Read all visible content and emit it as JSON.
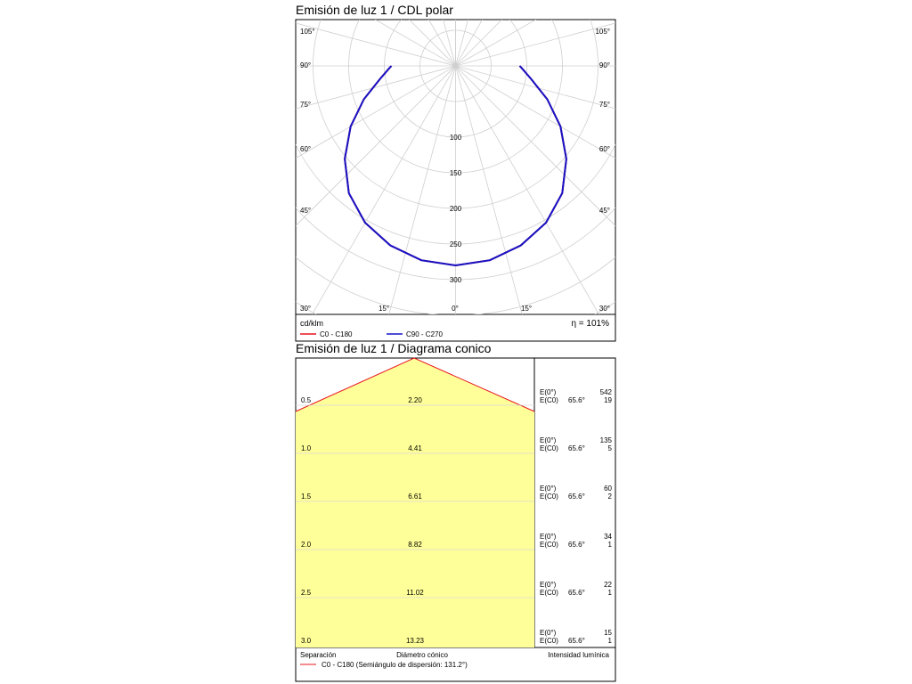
{
  "chart_data": [
    {
      "type": "polar",
      "title": "Emisión de luz 1 / CDL polar",
      "unit_label": "cd/klm",
      "efficiency": "η = 101%",
      "radial_ticks": [
        100,
        150,
        200,
        250,
        300
      ],
      "angle_labels_left": [
        "105°",
        "90°",
        "75°",
        "60°",
        "45°",
        "30°"
      ],
      "angle_labels_right": [
        "105°",
        "90°",
        "75°",
        "60°",
        "45°",
        "30°"
      ],
      "angle_labels_bottom": [
        "15°",
        "0°",
        "15°"
      ],
      "series": [
        {
          "name": "C0 - C180",
          "color": "#e8141e",
          "gamma": [
            0,
            10,
            20,
            30,
            40,
            50,
            60,
            70,
            80,
            88,
            90
          ],
          "cd_klm": [
            280,
            277,
            268,
            254,
            233,
            203,
            170,
            137,
            108,
            93,
            90
          ]
        },
        {
          "name": "C90 - C270",
          "color": "#1414c8",
          "gamma": [
            0,
            10,
            20,
            30,
            40,
            50,
            60,
            70,
            80,
            88,
            90
          ],
          "cd_klm": [
            280,
            277,
            268,
            254,
            233,
            203,
            170,
            137,
            108,
            93,
            90
          ]
        }
      ]
    },
    {
      "type": "table",
      "title": "Emisión de luz 1 / Diagrama conico",
      "headers": {
        "separation": "Separación",
        "diameter": "Diámetro cónico",
        "intensity": "Intensidad lumínica"
      },
      "legend": "C0 - C180 (Semiángulo de dispersión: 131.2°)",
      "half_angle": 131.2,
      "label_e0": "E(0°)",
      "label_ec0": "E(C0)",
      "rows": [
        {
          "separation": "0.5",
          "diameter": "2.20",
          "angle": "65.6°",
          "e0": "542",
          "ec0": "19"
        },
        {
          "separation": "1.0",
          "diameter": "4.41",
          "angle": "65.6°",
          "e0": "135",
          "ec0": "5"
        },
        {
          "separation": "1.5",
          "diameter": "6.61",
          "angle": "65.6°",
          "e0": "60",
          "ec0": "2"
        },
        {
          "separation": "2.0",
          "diameter": "8.82",
          "angle": "65.6°",
          "e0": "34",
          "ec0": "1"
        },
        {
          "separation": "2.5",
          "diameter": "11.02",
          "angle": "65.6°",
          "e0": "22",
          "ec0": "1"
        },
        {
          "separation": "3.0",
          "diameter": "13.23",
          "angle": "65.6°",
          "e0": "15",
          "ec0": "1"
        }
      ],
      "fill_color": "#ffff99",
      "edge_color": "#e8141e"
    }
  ]
}
